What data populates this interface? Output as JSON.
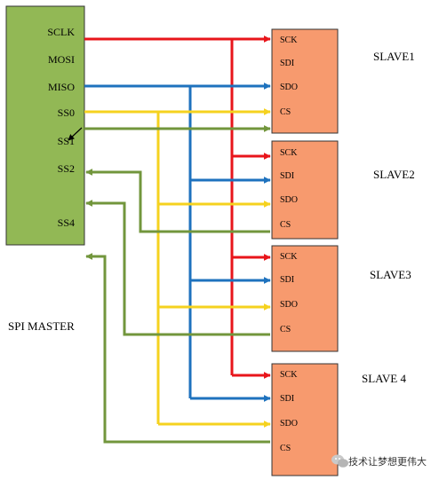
{
  "master": {
    "name": "SPI MASTER",
    "fill": "#92B855",
    "pins": [
      "SCLK",
      "MOSI",
      "MISO",
      "SS0",
      "SS1",
      "SS2",
      "SS4"
    ]
  },
  "slaves": [
    {
      "name": "SLAVE1",
      "pins": [
        "SCK",
        "SDI",
        "SDO",
        "CS"
      ]
    },
    {
      "name": "SLAVE2",
      "pins": [
        "SCK",
        "SDI",
        "SDO",
        "CS"
      ]
    },
    {
      "name": "SLAVE3",
      "pins": [
        "SCK",
        "SDI",
        "SDO",
        "CS"
      ]
    },
    {
      "name": "SLAVE 4",
      "pins": [
        "SCK",
        "SDI",
        "SDO",
        "CS"
      ]
    }
  ],
  "slave_fill": "#F79A6E",
  "wire_colors": {
    "clock": "#E8151B",
    "data": "#1E72BE",
    "select": "#F5D21F",
    "chip_select": "#72963C"
  },
  "watermark": {
    "text": "技术让梦想更伟大",
    "icon": "wechat-icon"
  }
}
